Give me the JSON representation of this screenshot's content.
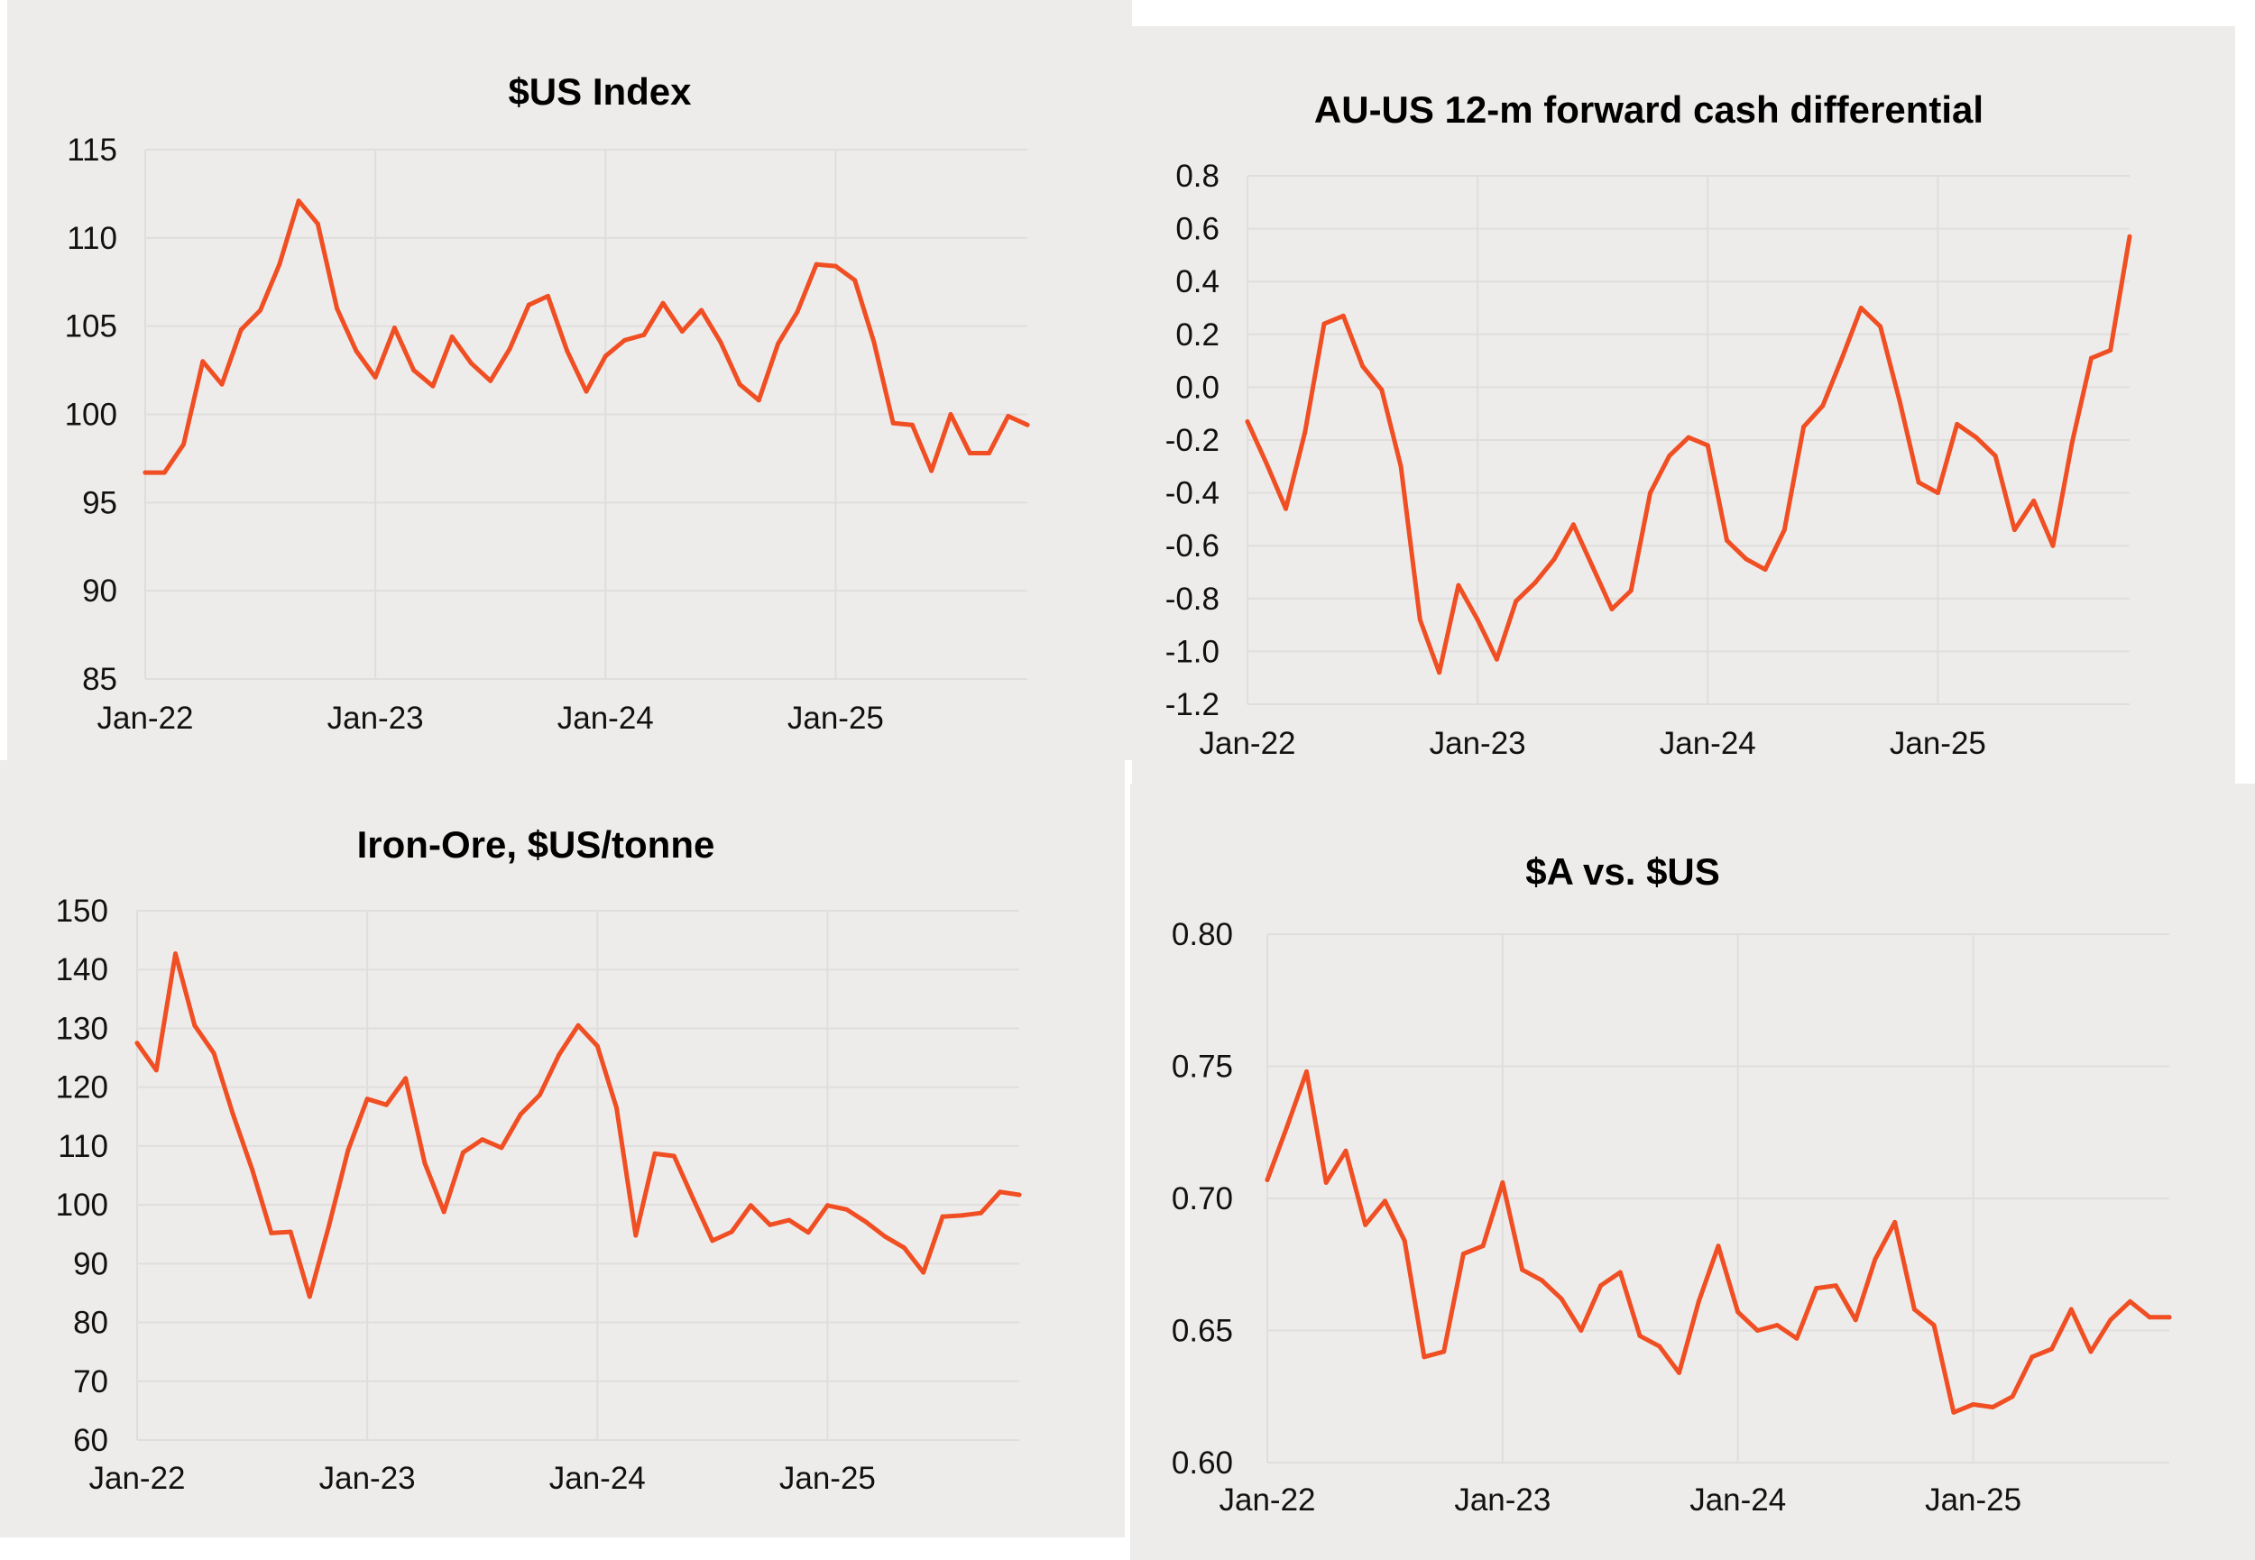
{
  "chart_data": [
    {
      "id": "usd-index",
      "type": "line",
      "title": "$US Index",
      "xlabel": "",
      "ylabel": "",
      "x_start": "Jan-22",
      "x_frequency": "monthly",
      "x_ticks": [
        "Jan-22",
        "Jan-23",
        "Jan-24",
        "Jan-25"
      ],
      "x_tick_months": [
        0,
        12,
        24,
        36
      ],
      "y_ticks": [
        "115",
        "110",
        "105",
        "100",
        "95",
        "90",
        "85"
      ],
      "y_tick_values": [
        115,
        110,
        105,
        100,
        95,
        90,
        85
      ],
      "ylim": [
        85,
        115
      ],
      "grid": true,
      "legend": "none",
      "series": [
        {
          "name": "$US Index",
          "color": "#f04e23",
          "values": [
            96.7,
            96.7,
            98.3,
            103.0,
            101.7,
            104.8,
            105.9,
            108.5,
            112.1,
            110.8,
            106.0,
            103.6,
            102.1,
            104.9,
            102.5,
            101.6,
            104.4,
            102.9,
            101.9,
            103.7,
            106.2,
            106.7,
            103.6,
            101.3,
            103.3,
            104.2,
            104.5,
            106.3,
            104.7,
            105.9,
            104.1,
            101.7,
            100.8,
            104.0,
            105.8,
            108.5,
            108.4,
            107.6,
            104.1,
            99.5,
            99.4,
            96.8,
            100.0,
            97.8,
            97.8,
            99.9,
            99.4
          ]
        }
      ]
    },
    {
      "id": "au-us-differential",
      "type": "line",
      "title": "AU-US 12-m forward cash differential",
      "xlabel": "",
      "ylabel": "",
      "x_start": "Jan-22",
      "x_frequency": "monthly",
      "x_ticks": [
        "Jan-22",
        "Jan-23",
        "Jan-24",
        "Jan-25"
      ],
      "x_tick_months": [
        0,
        12,
        24,
        36
      ],
      "y_ticks": [
        "0.8",
        "0.6",
        "0.4",
        "0.2",
        "0.0",
        "-0.2",
        "-0.4",
        "-0.6",
        "-0.8",
        "-1.0",
        "-1.2"
      ],
      "y_tick_values": [
        0.8,
        0.6,
        0.4,
        0.2,
        0.0,
        -0.2,
        -0.4,
        -0.6,
        -0.8,
        -1.0,
        -1.2
      ],
      "ylim": [
        -1.2,
        0.8
      ],
      "grid": true,
      "legend": "none",
      "series": [
        {
          "name": "AU-US 12-m forward cash differential",
          "color": "#f04e23",
          "values": [
            -0.13,
            -0.29,
            -0.46,
            -0.17,
            0.24,
            0.27,
            0.08,
            -0.01,
            -0.3,
            -0.88,
            -1.08,
            -0.75,
            -0.88,
            -1.03,
            -0.81,
            -0.74,
            -0.65,
            -0.52,
            -0.68,
            -0.84,
            -0.77,
            -0.4,
            -0.26,
            -0.19,
            -0.22,
            -0.58,
            -0.65,
            -0.69,
            -0.54,
            -0.15,
            -0.07,
            0.11,
            0.3,
            0.23,
            -0.05,
            -0.36,
            -0.4,
            -0.14,
            -0.19,
            -0.26,
            -0.54,
            -0.43,
            -0.6,
            -0.21,
            0.11,
            0.14,
            0.57
          ]
        }
      ]
    },
    {
      "id": "iron-ore",
      "type": "line",
      "title": "Iron-Ore, $US/tonne",
      "xlabel": "",
      "ylabel": "",
      "x_start": "Jan-22",
      "x_frequency": "monthly",
      "x_ticks": [
        "Jan-22",
        "Jan-23",
        "Jan-24",
        "Jan-25"
      ],
      "x_tick_months": [
        0,
        12,
        24,
        36
      ],
      "y_ticks": [
        "150",
        "140",
        "130",
        "120",
        "110",
        "100",
        "90",
        "80",
        "70",
        "60"
      ],
      "y_tick_values": [
        150,
        140,
        130,
        120,
        110,
        100,
        90,
        80,
        70,
        60
      ],
      "ylim": [
        60,
        150
      ],
      "grid": true,
      "legend": "none",
      "series": [
        {
          "name": "Iron-Ore, $US/tonne",
          "color": "#f04e23",
          "values": [
            127.5,
            122.9,
            142.7,
            130.5,
            125.8,
            115.4,
            106.0,
            95.2,
            95.4,
            84.4,
            96.4,
            109.3,
            118.0,
            117.0,
            121.5,
            107.1,
            98.8,
            108.9,
            111.1,
            109.7,
            115.4,
            118.7,
            125.5,
            130.5,
            127.0,
            116.5,
            94.8,
            108.7,
            108.3,
            101.0,
            93.9,
            95.4,
            99.9,
            96.6,
            97.4,
            95.3,
            99.9,
            99.2,
            97.1,
            94.6,
            92.7,
            88.5,
            98.0,
            98.2,
            98.6,
            102.2,
            101.7
          ]
        }
      ]
    },
    {
      "id": "aud-usd",
      "type": "line",
      "title": "$A vs. $US",
      "xlabel": "",
      "ylabel": "",
      "x_start": "Jan-22",
      "x_frequency": "monthly",
      "x_ticks": [
        "Jan-22",
        "Jan-23",
        "Jan-24",
        "Jan-25"
      ],
      "x_tick_months": [
        0,
        12,
        24,
        36
      ],
      "y_ticks": [
        "0.80",
        "0.75",
        "0.70",
        "0.65",
        "0.60"
      ],
      "y_tick_values": [
        0.8,
        0.75,
        0.7,
        0.65,
        0.6
      ],
      "ylim": [
        0.6,
        0.8
      ],
      "grid": true,
      "legend": "none",
      "series": [
        {
          "name": "$A vs. $US",
          "color": "#f04e23",
          "values": [
            0.707,
            0.727,
            0.748,
            0.706,
            0.718,
            0.69,
            0.699,
            0.684,
            0.64,
            0.642,
            0.679,
            0.682,
            0.706,
            0.673,
            0.669,
            0.662,
            0.65,
            0.667,
            0.672,
            0.648,
            0.644,
            0.634,
            0.661,
            0.682,
            0.657,
            0.65,
            0.652,
            0.647,
            0.666,
            0.667,
            0.654,
            0.677,
            0.691,
            0.658,
            0.652,
            0.619,
            0.622,
            0.621,
            0.625,
            0.64,
            0.643,
            0.658,
            0.642,
            0.654,
            0.661,
            0.655,
            0.655
          ]
        }
      ]
    }
  ]
}
